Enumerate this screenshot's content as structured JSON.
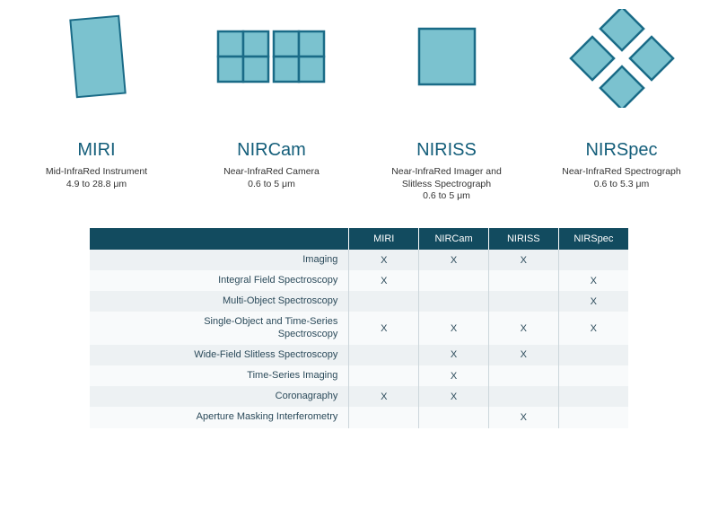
{
  "colors": {
    "shape_fill": "#7bc2cf",
    "shape_stroke": "#1a6b87",
    "title_color": "#145e7a",
    "desc_color": "#333333",
    "table_header_bg": "#124b5f",
    "table_header_fg": "#ffffff",
    "table_row_odd": "#edf1f3",
    "table_row_even": "#f8fafb",
    "table_border": "#ccd6db",
    "background": "#ffffff"
  },
  "instruments": [
    {
      "id": "miri",
      "title": "MIRI",
      "desc": "Mid-InfraRed Instrument\n4.9 to 28.8 μm",
      "shape": "tilted-rect"
    },
    {
      "id": "nircam",
      "title": "NIRCam",
      "desc": "Near-InfraRed Camera\n0.6 to 5 μm",
      "shape": "two-quad-grids"
    },
    {
      "id": "niriss",
      "title": "NIRISS",
      "desc": "Near-InfraRed Imager and\nSlitless Spectrograph\n0.6 to 5 μm",
      "shape": "single-square"
    },
    {
      "id": "nirspec",
      "title": "NIRSpec",
      "desc": "Near-InfraRed Spectrograph\n0.6 to 5.3 μm",
      "shape": "four-diamonds"
    }
  ],
  "table": {
    "columns": [
      "MIRI",
      "NIRCam",
      "NIRISS",
      "NIRSpec"
    ],
    "mark": "X",
    "rows": [
      {
        "label": "Imaging",
        "cells": [
          true,
          true,
          true,
          false
        ]
      },
      {
        "label": "Integral Field Spectroscopy",
        "cells": [
          true,
          false,
          false,
          true
        ]
      },
      {
        "label": "Multi-Object Spectroscopy",
        "cells": [
          false,
          false,
          false,
          true
        ]
      },
      {
        "label": "Single-Object and Time-Series\nSpectroscopy",
        "cells": [
          true,
          true,
          true,
          true
        ]
      },
      {
        "label": "Wide-Field Slitless Spectroscopy",
        "cells": [
          false,
          true,
          true,
          false
        ]
      },
      {
        "label": "Time-Series Imaging",
        "cells": [
          false,
          true,
          false,
          false
        ]
      },
      {
        "label": "Coronagraphy",
        "cells": [
          true,
          true,
          false,
          false
        ]
      },
      {
        "label": "Aperture Masking Interferometry",
        "cells": [
          false,
          false,
          true,
          false
        ]
      }
    ]
  }
}
